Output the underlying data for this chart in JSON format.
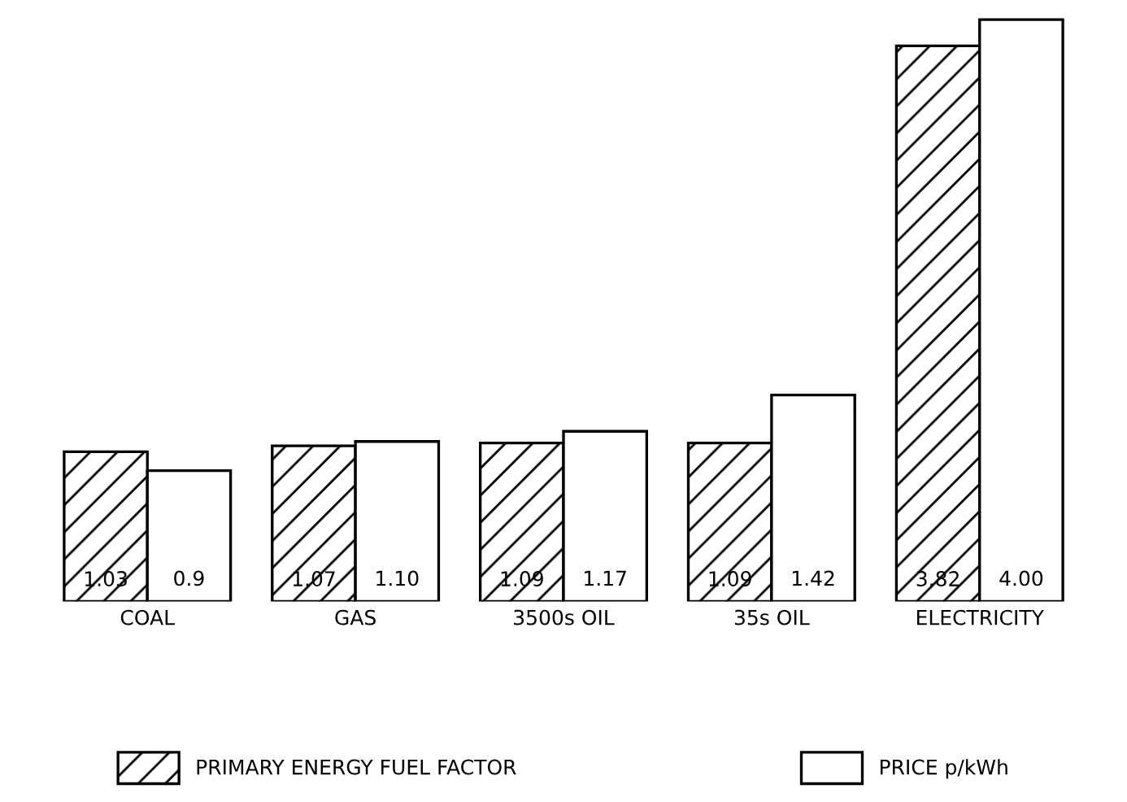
{
  "chart_data": {
    "type": "bar",
    "categories": [
      "COAL",
      "GAS",
      "3500s OIL",
      "35s OIL",
      "ELECTRICITY"
    ],
    "series": [
      {
        "name": "PRIMARY ENERGY FUEL FACTOR",
        "color": "#000000",
        "values": [
          1.03,
          1.07,
          1.09,
          1.09,
          3.82
        ],
        "value_labels": [
          "1.03",
          "1.07",
          "1.09",
          "1.09",
          "3.82"
        ]
      },
      {
        "name": "PRICE p/kWh",
        "color": "#ffffff",
        "values": [
          0.9,
          1.1,
          1.17,
          1.42,
          4.0
        ],
        "value_labels": [
          "0.9",
          "1.10",
          "1.17",
          "1.42",
          "4.00"
        ]
      }
    ],
    "legend": "bottom",
    "grid": false
  }
}
